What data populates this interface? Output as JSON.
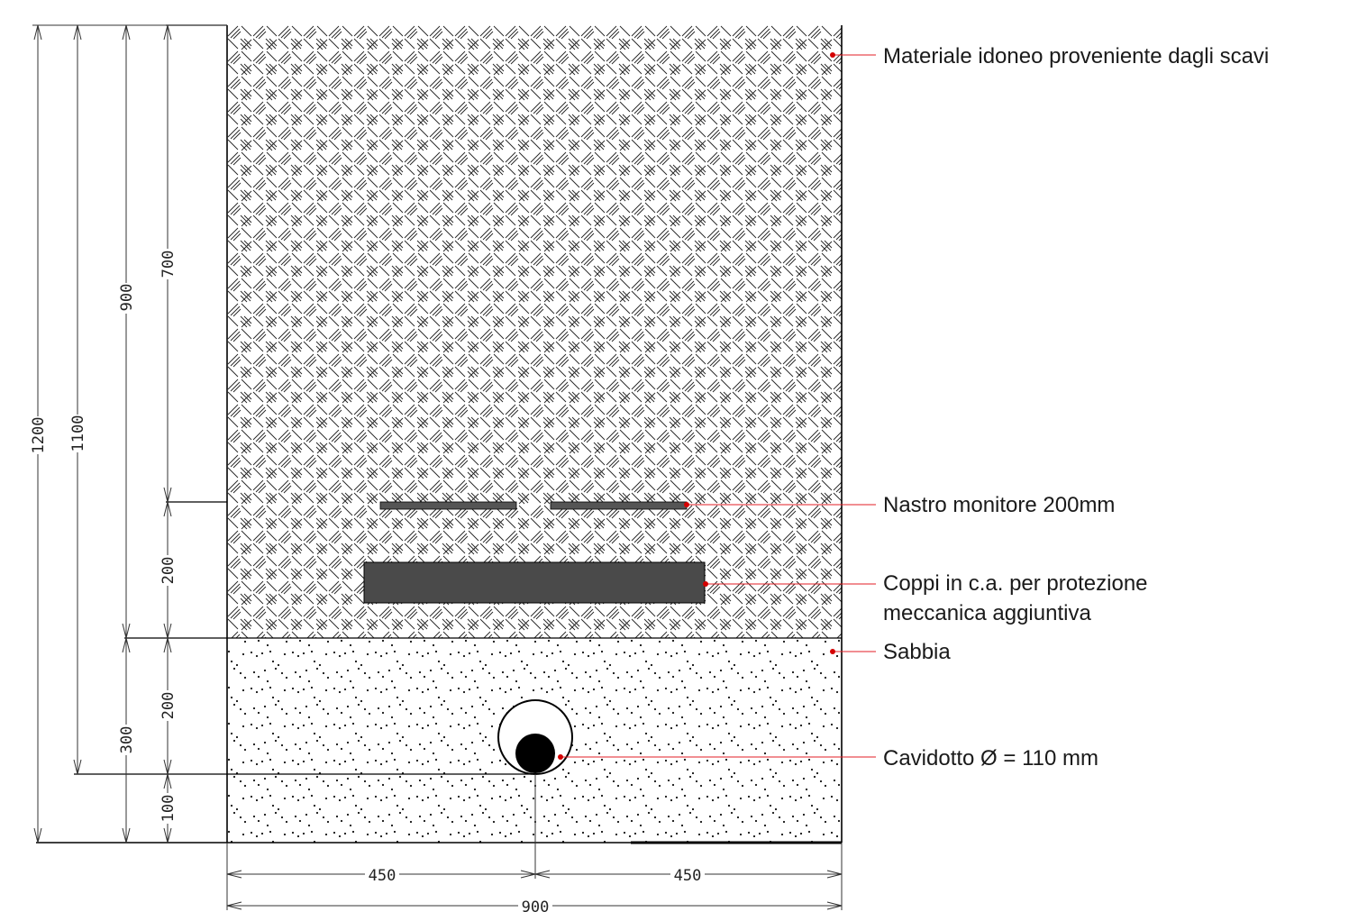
{
  "labels": {
    "fill_material": "Materiale idoneo proveniente dagli scavi",
    "warning_tape": "Nastro monitore 200mm",
    "concrete_tiles_line1": "Coppi in c.a. per protezione",
    "concrete_tiles_line2": "meccanica aggiuntiva",
    "sand": "Sabbia",
    "conduit": "Cavidotto Ø = 110 mm"
  },
  "dimensions": {
    "vertical": {
      "total_depth": "1200",
      "conduit_base_depth": "1100",
      "sand_top_depth": "900",
      "tape_depth": "700",
      "tape_to_sand": "200",
      "sand_layer": "300",
      "conduit_zone": "200",
      "bed_below_conduit": "100"
    },
    "horizontal": {
      "left_half": "450",
      "right_half": "450",
      "total_width": "900"
    }
  },
  "colors": {
    "leader_line": "#e31e24",
    "leader_dot": "#d40000",
    "concrete_tile": "#4a4a4a",
    "tape": "#555555",
    "cable": "#000000",
    "outline": "#000000"
  }
}
